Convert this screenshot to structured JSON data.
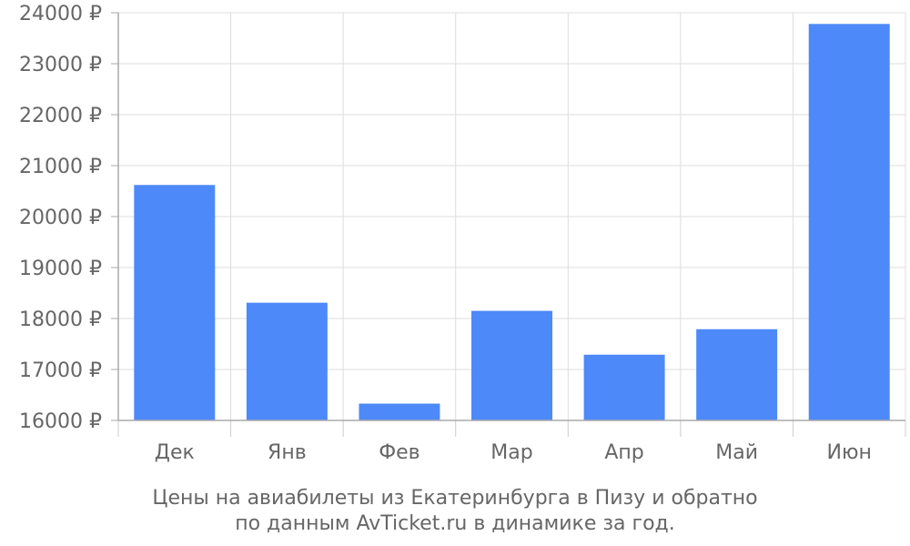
{
  "chart_data": {
    "type": "bar",
    "categories": [
      "Дек",
      "Янв",
      "Фев",
      "Мар",
      "Апр",
      "Май",
      "Июн"
    ],
    "values": [
      20620,
      18310,
      16330,
      18150,
      17290,
      17790,
      23780
    ],
    "yticks": [
      16000,
      17000,
      18000,
      19000,
      20000,
      21000,
      22000,
      23000,
      24000
    ],
    "y_tick_suffix": " ₽",
    "ylim": [
      16000,
      24000
    ],
    "grid": true,
    "bar_color": "#4d89f9",
    "title_lines": [
      "Цены на авиабилеты из Екатеринбурга в Пизу и обратно",
      "по данным AvTicket.ru в динамике за год."
    ]
  }
}
